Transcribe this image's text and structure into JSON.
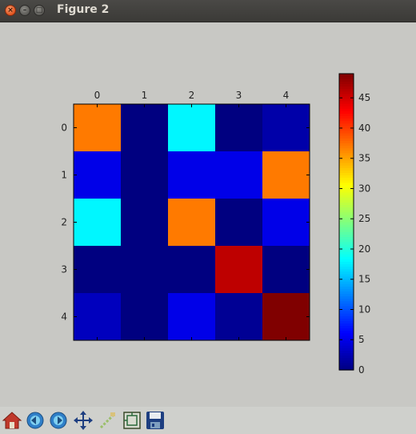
{
  "window": {
    "title": "Figure 2"
  },
  "chart_data": {
    "type": "heatmap",
    "title": "",
    "xlabel": "",
    "ylabel": "",
    "x_ticks": [
      "0",
      "1",
      "2",
      "3",
      "4"
    ],
    "y_ticks": [
      "0",
      "1",
      "2",
      "3",
      "4"
    ],
    "x_tick_position": "top",
    "values": [
      [
        37,
        0,
        18,
        0,
        2
      ],
      [
        5,
        0,
        5,
        5,
        37
      ],
      [
        18,
        0,
        37,
        0,
        5
      ],
      [
        0,
        0,
        0,
        46,
        0
      ],
      [
        3,
        0,
        5,
        1,
        49
      ]
    ],
    "colormap": "jet",
    "colorbar": {
      "range": [
        0,
        49
      ],
      "ticks": [
        0,
        5,
        10,
        15,
        20,
        25,
        30,
        35,
        40,
        45
      ],
      "position": "right"
    },
    "grid": false
  },
  "toolbar": {
    "buttons": [
      {
        "name": "home-button",
        "icon": "home-icon"
      },
      {
        "name": "back-button",
        "icon": "back-icon"
      },
      {
        "name": "forward-button",
        "icon": "forward-icon"
      },
      {
        "name": "pan-button",
        "icon": "pan-icon"
      },
      {
        "name": "zoom-button",
        "icon": "zoom-icon"
      },
      {
        "name": "configure-subplots-button",
        "icon": "subplots-icon"
      },
      {
        "name": "save-button",
        "icon": "save-icon"
      }
    ]
  }
}
